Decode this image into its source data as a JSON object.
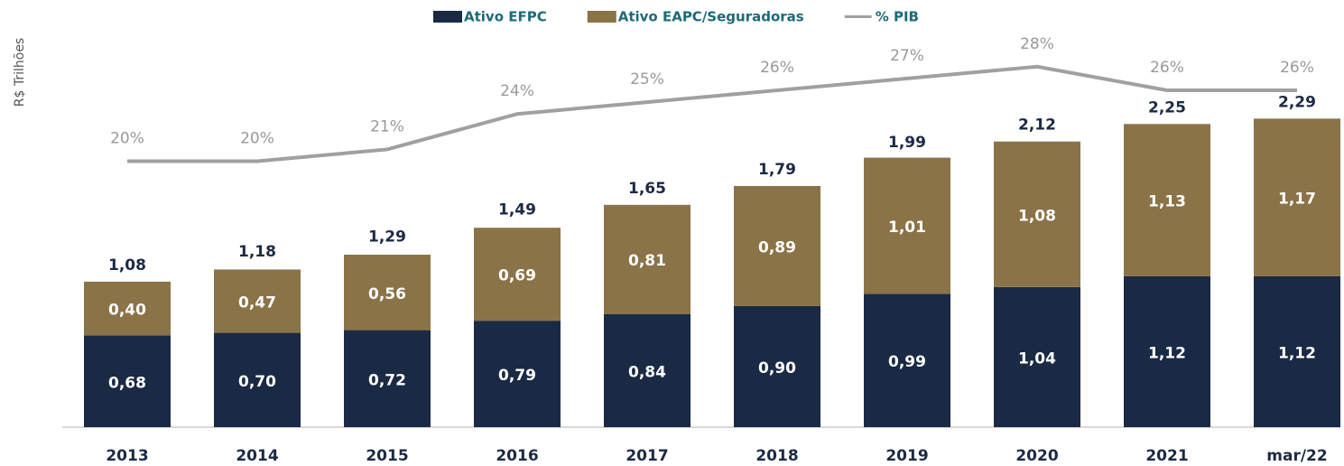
{
  "chart_data": {
    "type": "bar",
    "stacked": true,
    "y_label": "R$ Trilhões",
    "categories": [
      "2013",
      "2014",
      "2015",
      "2016",
      "2017",
      "2018",
      "2019",
      "2020",
      "2021",
      "mar/22"
    ],
    "series": [
      {
        "name": "Ativo EFPC",
        "color": "#1a2a44",
        "values": [
          0.68,
          0.7,
          0.72,
          0.79,
          0.84,
          0.9,
          0.99,
          1.04,
          1.12,
          1.12
        ],
        "value_labels": [
          "0,68",
          "0,70",
          "0,72",
          "0,79",
          "0,84",
          "0,90",
          "0,99",
          "1,04",
          "1,12",
          "1,12"
        ]
      },
      {
        "name": "Ativo EAPC/Seguradoras",
        "color": "#8b7348",
        "values": [
          0.4,
          0.47,
          0.56,
          0.69,
          0.81,
          0.89,
          1.01,
          1.08,
          1.13,
          1.17
        ],
        "value_labels": [
          "0,40",
          "0,47",
          "0,56",
          "0,69",
          "0,81",
          "0,89",
          "1,01",
          "1,08",
          "1,13",
          "1,17"
        ]
      },
      {
        "name": "% PIB",
        "type": "line",
        "axis": "y2",
        "color": "#a0a0a0",
        "values": [
          20,
          20,
          21,
          24,
          25,
          26,
          27,
          28,
          26,
          26
        ],
        "value_labels": [
          "20%",
          "20%",
          "21%",
          "24%",
          "25%",
          "26%",
          "27%",
          "28%",
          "26%",
          "26%"
        ]
      }
    ],
    "totals": [
      1.08,
      1.18,
      1.29,
      1.49,
      1.65,
      1.79,
      1.99,
      2.12,
      2.25,
      2.29
    ],
    "total_labels": [
      "1,08",
      "1,18",
      "1,29",
      "1,49",
      "1,65",
      "1,79",
      "1,99",
      "2,12",
      "2,25",
      "2,29"
    ],
    "ylim": [
      0,
      2.5
    ],
    "y2lim": [
      -2.5,
      26
    ],
    "grid": false
  }
}
